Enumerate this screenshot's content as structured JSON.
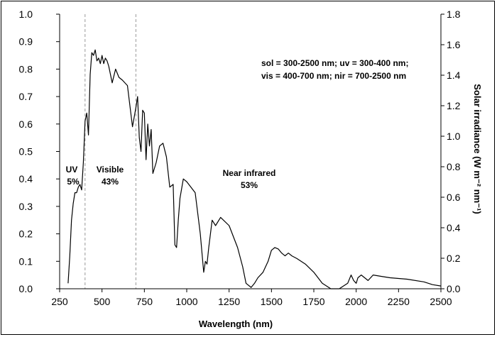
{
  "chart_data": {
    "type": "line",
    "xlabel": "Wavelength (nm)",
    "ylabel_right": "Solar irradiance (W m⁻² nm⁻¹)",
    "xlim": [
      250,
      2500
    ],
    "ylim_left": [
      0.0,
      1.0
    ],
    "ylim_right": [
      0.0,
      1.8
    ],
    "x_ticks": [
      "250",
      "500",
      "750",
      "1000",
      "1250",
      "1500",
      "1750",
      "2000",
      "2250",
      "2500"
    ],
    "y_ticks_left": [
      "0.0",
      "0.1",
      "0.2",
      "0.3",
      "0.4",
      "0.5",
      "0.6",
      "0.7",
      "0.8",
      "0.9",
      "1.0"
    ],
    "y_ticks_right": [
      "0.0",
      "0.2",
      "0.4",
      "0.6",
      "0.8",
      "1.0",
      "1.2",
      "1.4",
      "1.6",
      "1.8"
    ],
    "grid": false,
    "band_boundaries_nm": [
      400,
      700
    ],
    "annotations": {
      "uv_label": "UV",
      "uv_pct": "5%",
      "vis_label": "Visible",
      "vis_pct": "43%",
      "nir_label": "Near infrared",
      "nir_pct": "53%",
      "legend_line1": "sol = 300-2500 nm; uv = 300-400 nm;",
      "legend_line2": "vis = 400-700 nm; nir = 700-2500 nm"
    },
    "series": [
      {
        "color": "#000000",
        "x": [
          300,
          310,
          320,
          330,
          340,
          350,
          360,
          370,
          380,
          390,
          400,
          410,
          420,
          430,
          440,
          450,
          460,
          470,
          480,
          490,
          500,
          510,
          520,
          530,
          540,
          560,
          580,
          600,
          620,
          650,
          680,
          700,
          710,
          720,
          730,
          740,
          750,
          760,
          770,
          780,
          790,
          800,
          820,
          840,
          860,
          880,
          900,
          920,
          930,
          940,
          950,
          960,
          980,
          1000,
          1050,
          1080,
          1100,
          1110,
          1120,
          1130,
          1140,
          1150,
          1170,
          1200,
          1250,
          1300,
          1330,
          1350,
          1380,
          1400,
          1420,
          1450,
          1480,
          1500,
          1520,
          1540,
          1560,
          1580,
          1600,
          1620,
          1650,
          1700,
          1750,
          1800,
          1850,
          1900,
          1950,
          1970,
          1985,
          2000,
          2010,
          2030,
          2050,
          2070,
          2100,
          2150,
          2200,
          2300,
          2400,
          2450,
          2500
        ],
        "y": [
          0.02,
          0.12,
          0.25,
          0.31,
          0.35,
          0.35,
          0.37,
          0.38,
          0.36,
          0.46,
          0.61,
          0.64,
          0.56,
          0.78,
          0.86,
          0.85,
          0.87,
          0.83,
          0.84,
          0.82,
          0.85,
          0.82,
          0.84,
          0.83,
          0.81,
          0.75,
          0.8,
          0.77,
          0.76,
          0.74,
          0.59,
          0.66,
          0.7,
          0.55,
          0.5,
          0.65,
          0.64,
          0.47,
          0.6,
          0.52,
          0.58,
          0.42,
          0.46,
          0.52,
          0.53,
          0.48,
          0.37,
          0.38,
          0.16,
          0.15,
          0.25,
          0.33,
          0.4,
          0.39,
          0.35,
          0.2,
          0.06,
          0.1,
          0.09,
          0.15,
          0.2,
          0.25,
          0.23,
          0.26,
          0.23,
          0.15,
          0.08,
          0.02,
          0.005,
          0.02,
          0.04,
          0.06,
          0.1,
          0.14,
          0.15,
          0.145,
          0.13,
          0.12,
          0.13,
          0.12,
          0.11,
          0.09,
          0.06,
          0.02,
          0.0,
          0.0,
          0.02,
          0.05,
          0.03,
          0.02,
          0.04,
          0.05,
          0.04,
          0.03,
          0.05,
          0.045,
          0.04,
          0.035,
          0.025,
          0.015,
          0.01
        ]
      }
    ]
  }
}
